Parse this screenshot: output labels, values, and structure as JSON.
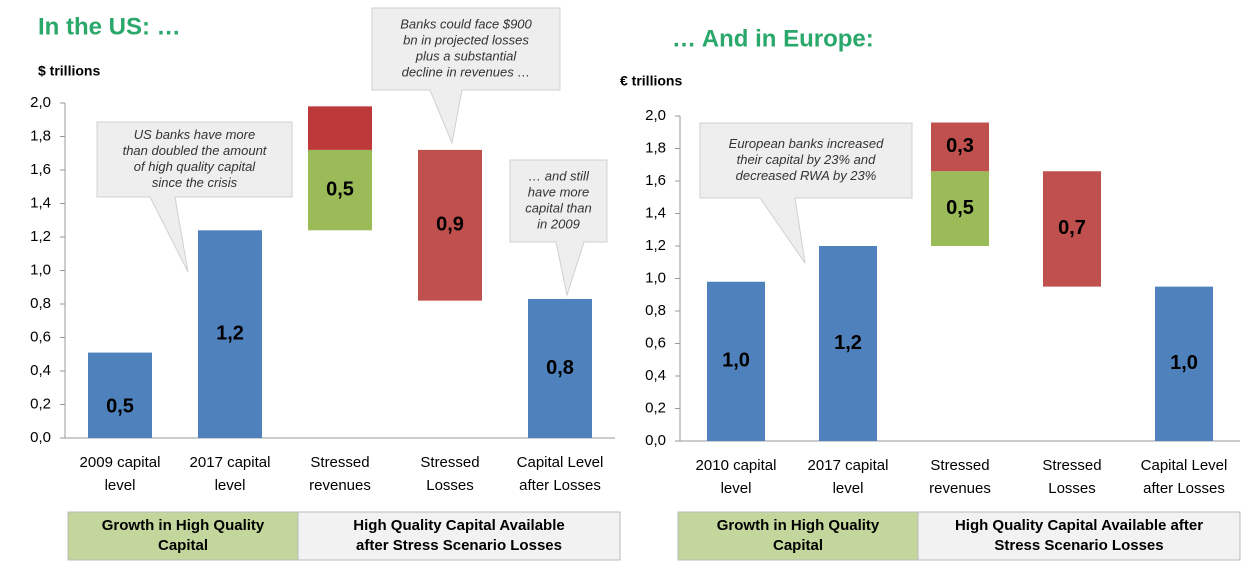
{
  "chart_data": [
    {
      "type": "waterfall",
      "title": "In the US: …",
      "y_label": "$ trillions",
      "categories": [
        [
          "2009 capital",
          "level"
        ],
        [
          "2017 capital",
          "level"
        ],
        [
          "Stressed",
          "revenues"
        ],
        [
          "Stressed",
          "Losses"
        ],
        [
          "Capital Level",
          "after Losses"
        ]
      ],
      "measure": [
        "total",
        "total",
        "increase",
        "decrease",
        "total"
      ],
      "values": [
        0.51,
        1.24,
        0.48,
        0.9,
        0.83
      ],
      "value_labels": [
        "0,5",
        "1,2",
        "0,5",
        "0,9",
        "0,8"
      ],
      "cap_values": [
        null,
        null,
        0.26,
        null,
        null
      ],
      "colors": {
        "total": "#4f81bd",
        "increase": "#9bbb59",
        "decrease": "#c0504d",
        "cap": "#be3a3a"
      },
      "ylim": [
        0,
        2
      ],
      "yticks": [
        {
          "value": 0,
          "label": "0,0"
        },
        {
          "value": 0.2,
          "label": "0,2"
        },
        {
          "value": 0.4,
          "label": "0,4"
        },
        {
          "value": 0.6,
          "label": "0,6"
        },
        {
          "value": 0.8,
          "label": "0,8"
        },
        {
          "value": 1,
          "label": "1,0"
        },
        {
          "value": 1.2,
          "label": "1,2"
        },
        {
          "value": 1.4,
          "label": "1,4"
        },
        {
          "value": 1.6,
          "label": "1,6"
        },
        {
          "value": 1.8,
          "label": "1,8"
        },
        {
          "value": 2,
          "label": "2,0"
        }
      ],
      "annotations": [
        {
          "lines": [
            "US banks have more",
            "than doubled the amount",
            "of high quality capital",
            "since the crisis"
          ]
        },
        {
          "lines": [
            "Banks could face $900",
            "bn in projected losses",
            "plus a substantial",
            "decline in revenues …"
          ]
        },
        {
          "lines": [
            "… and still",
            "have more",
            "capital than",
            "in 2009"
          ]
        }
      ],
      "groups": [
        {
          "lines": [
            "Growth in High Quality",
            "Capital"
          ]
        },
        {
          "lines": [
            "High Quality Capital Available",
            "after Stress Scenario Losses"
          ]
        }
      ]
    },
    {
      "type": "waterfall",
      "title": "… And in Europe:",
      "y_label": "€ trillions",
      "categories": [
        [
          "2010 capital",
          "level"
        ],
        [
          "2017 capital",
          "level"
        ],
        [
          "Stressed",
          "revenues"
        ],
        [
          "Stressed",
          "Losses"
        ],
        [
          "Capital Level",
          "after Losses"
        ]
      ],
      "measure": [
        "total",
        "total",
        "increase",
        "decrease",
        "total"
      ],
      "values": [
        0.98,
        1.2,
        0.46,
        0.71,
        0.95
      ],
      "value_labels": [
        "1,0",
        "1,2",
        "0,5",
        "0,7",
        "1,0"
      ],
      "cap_values": [
        null,
        null,
        0.3,
        null,
        null
      ],
      "cap_value_labels": [
        null,
        null,
        "0,3",
        null,
        null
      ],
      "colors": {
        "total": "#4f81bd",
        "increase": "#9bbb59",
        "decrease": "#c0504d",
        "cap": "#c0504d"
      },
      "ylim": [
        0,
        2
      ],
      "yticks": [
        {
          "value": 0,
          "label": "0,0"
        },
        {
          "value": 0.2,
          "label": "0,2"
        },
        {
          "value": 0.4,
          "label": "0,4"
        },
        {
          "value": 0.6,
          "label": "0,6"
        },
        {
          "value": 0.8,
          "label": "0,8"
        },
        {
          "value": 1,
          "label": "1,0"
        },
        {
          "value": 1.2,
          "label": "1,2"
        },
        {
          "value": 1.4,
          "label": "1,4"
        },
        {
          "value": 1.6,
          "label": "1,6"
        },
        {
          "value": 1.8,
          "label": "1,8"
        },
        {
          "value": 2,
          "label": "2,0"
        }
      ],
      "annotations": [
        {
          "lines": [
            "European banks increased",
            "their capital by 23% and",
            "decreased RWA by 23%"
          ]
        }
      ],
      "groups": [
        {
          "lines": [
            "Growth in High Quality",
            "Capital"
          ]
        },
        {
          "lines": [
            "High Quality Capital Available after",
            "Stress Scenario Losses"
          ]
        }
      ]
    }
  ]
}
